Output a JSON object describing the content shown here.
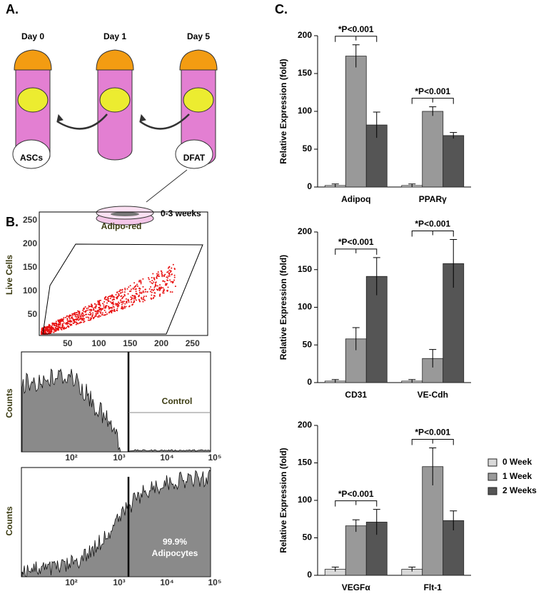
{
  "panel_a": {
    "label": "A.",
    "days": [
      "Day 0",
      "Day 1",
      "Day 5"
    ],
    "cells": [
      "ASCs",
      "DFAT"
    ],
    "duration": "0-3 weeks"
  },
  "panel_b": {
    "label": "B.",
    "scatter": {
      "gate": "Adipo-red",
      "ylabel": "Live Cells",
      "xticks": [
        50,
        100,
        150,
        200,
        250
      ],
      "yticks": [
        50,
        100,
        150,
        200,
        250
      ]
    },
    "control": {
      "ylabel": "Counts",
      "gate": "Control",
      "xticks": [
        "10²",
        "10³",
        "10⁴",
        "10⁵"
      ]
    },
    "adipocytes": {
      "ylabel": "Counts",
      "percent": "99.9%",
      "gate": "Adipocytes",
      "xticks": [
        "10²",
        "10³",
        "10⁴",
        "10⁵"
      ]
    }
  },
  "panel_c": {
    "label": "C."
  },
  "chart_data": [
    {
      "type": "bar",
      "ylabel": "Relative Expression (fold)",
      "categories": [
        "Adipoq",
        "PPARγ"
      ],
      "annotations": [
        "*P<0.001",
        "*P<0.001"
      ],
      "series": [
        {
          "color": "#d9d9d9",
          "values": [
            2,
            2
          ],
          "errors": [
            2,
            2
          ]
        },
        {
          "color": "#999999",
          "values": [
            173,
            100
          ],
          "errors": [
            15,
            6
          ]
        },
        {
          "color": "#555555",
          "values": [
            82,
            68
          ],
          "errors": [
            17,
            4
          ]
        }
      ],
      "ylim": [
        0,
        200
      ],
      "yticks": [
        0,
        50,
        100,
        150,
        200
      ],
      "legend": false
    },
    {
      "type": "bar",
      "ylabel": "Relative Expression (fold)",
      "categories": [
        "CD31",
        "VE-Cdh"
      ],
      "annotations": [
        "*P<0.001",
        "*P<0.001"
      ],
      "series": [
        {
          "color": "#d9d9d9",
          "values": [
            2,
            2
          ],
          "errors": [
            2,
            2
          ]
        },
        {
          "color": "#999999",
          "values": [
            58,
            32
          ],
          "errors": [
            15,
            12
          ]
        },
        {
          "color": "#555555",
          "values": [
            141,
            158
          ],
          "errors": [
            25,
            32
          ]
        }
      ],
      "ylim": [
        0,
        200
      ],
      "yticks": [
        0,
        50,
        100,
        150,
        200
      ],
      "legend": false
    },
    {
      "type": "bar",
      "ylabel": "Relative Expression (fold)",
      "categories": [
        "VEGFα",
        "Flt-1"
      ],
      "annotations": [
        "*P<0.001",
        "*P<0.001"
      ],
      "series": [
        {
          "name": "0 Week",
          "color": "#d9d9d9",
          "values": [
            8,
            8
          ],
          "errors": [
            3,
            3
          ]
        },
        {
          "name": "1 Week",
          "color": "#999999",
          "values": [
            66,
            145
          ],
          "errors": [
            8,
            25
          ]
        },
        {
          "name": "2 Weeks",
          "color": "#555555",
          "values": [
            71,
            73
          ],
          "errors": [
            17,
            13
          ]
        }
      ],
      "ylim": [
        0,
        200
      ],
      "yticks": [
        0,
        50,
        100,
        150,
        200
      ],
      "legend": true
    }
  ]
}
